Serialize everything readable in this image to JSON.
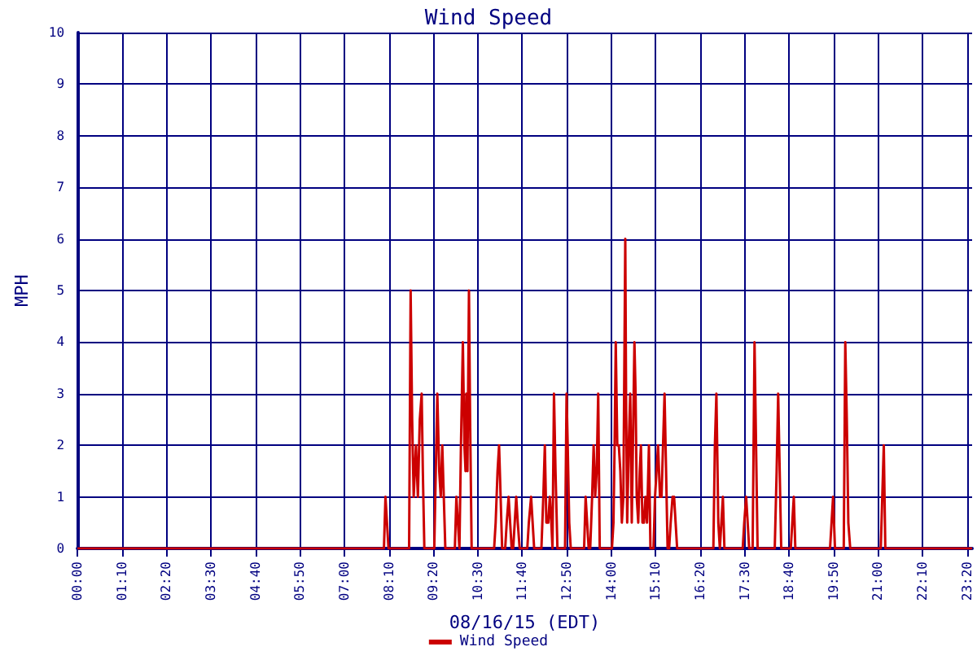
{
  "chart_data": {
    "type": "line",
    "title": "Wind Speed",
    "xlabel": "08/16/15 (EDT)",
    "ylabel": "MPH",
    "xlim": [
      0,
      23.4667
    ],
    "ylim": [
      0,
      10
    ],
    "xticks": [
      {
        "value": 0,
        "label": "00:00"
      },
      {
        "value": 1.1667,
        "label": "01:10"
      },
      {
        "value": 2.3333,
        "label": "02:20"
      },
      {
        "value": 3.5,
        "label": "03:30"
      },
      {
        "value": 4.6667,
        "label": "04:40"
      },
      {
        "value": 5.8333,
        "label": "05:50"
      },
      {
        "value": 7,
        "label": "07:00"
      },
      {
        "value": 8.1667,
        "label": "08:10"
      },
      {
        "value": 9.3333,
        "label": "09:20"
      },
      {
        "value": 10.5,
        "label": "10:30"
      },
      {
        "value": 11.6667,
        "label": "11:40"
      },
      {
        "value": 12.8333,
        "label": "12:50"
      },
      {
        "value": 14,
        "label": "14:00"
      },
      {
        "value": 15.1667,
        "label": "15:10"
      },
      {
        "value": 16.3333,
        "label": "16:20"
      },
      {
        "value": 17.5,
        "label": "17:30"
      },
      {
        "value": 18.6667,
        "label": "18:40"
      },
      {
        "value": 19.8333,
        "label": "19:50"
      },
      {
        "value": 21,
        "label": "21:00"
      },
      {
        "value": 22.1667,
        "label": "22:10"
      },
      {
        "value": 23.3333,
        "label": "23:20"
      }
    ],
    "yticks": [
      0,
      1,
      2,
      3,
      4,
      5,
      6,
      7,
      8,
      9,
      10
    ],
    "grid": true,
    "legend": "bottom",
    "marker": "none",
    "line_style": "solid",
    "x": [
      0,
      8.04,
      8.08,
      8.12,
      8.16,
      8.7,
      8.74,
      8.78,
      8.82,
      8.88,
      8.93,
      8.98,
      9.03,
      9.06,
      9.1,
      9.36,
      9.4,
      9.44,
      9.49,
      9.53,
      9.57,
      9.61,
      9.65,
      9.9,
      9.94,
      9.98,
      10.02,
      10.06,
      10.11,
      10.15,
      10.18,
      10.2,
      10.23,
      10.27,
      10.3,
      10.34,
      10.93,
      10.97,
      11.02,
      11.06,
      11.1,
      11.14,
      11.22,
      11.26,
      11.31,
      11.35,
      11.39,
      11.43,
      11.47,
      11.51,
      11.55,
      11.6,
      11.8,
      11.84,
      11.9,
      11.94,
      11.98,
      12.17,
      12.22,
      12.26,
      12.3,
      12.35,
      12.39,
      12.43,
      12.46,
      12.5,
      12.54,
      12.59,
      12.79,
      12.83,
      12.86,
      12.9,
      12.94,
      13.29,
      13.33,
      13.37,
      13.41,
      13.45,
      13.5,
      13.54,
      13.58,
      13.62,
      13.66,
      13.7,
      14.02,
      14.06,
      14.09,
      14.12,
      14.16,
      14.2,
      14.24,
      14.28,
      14.32,
      14.37,
      14.39,
      14.42,
      14.46,
      14.5,
      14.54,
      14.57,
      14.61,
      14.64,
      14.67,
      14.71,
      14.75,
      14.78,
      14.82,
      14.86,
      14.9,
      14.94,
      14.99,
      15.03,
      15.11,
      15.15,
      15.19,
      15.23,
      15.28,
      15.32,
      15.36,
      15.4,
      15.44,
      15.48,
      15.52,
      15.56,
      15.61,
      15.65,
      15.69,
      15.73,
      16.68,
      16.72,
      16.76,
      16.81,
      16.85,
      16.89,
      16.93,
      16.97,
      17.45,
      17.49,
      17.54,
      17.58,
      17.62,
      17.71,
      17.76,
      17.8,
      17.84,
      18.29,
      18.34,
      18.38,
      18.42,
      18.46,
      18.71,
      18.75,
      18.79,
      18.83,
      19.74,
      19.78,
      19.82,
      19.87,
      20.1,
      20.14,
      20.18,
      20.22,
      20.27,
      21.07,
      21.11,
      21.15,
      21.19,
      23.4667
    ],
    "series": [
      {
        "name": "Wind Speed",
        "color": "#cc0000",
        "values": [
          0,
          0,
          1,
          0.5,
          0,
          0,
          5,
          2.5,
          1,
          2,
          1,
          2.5,
          3,
          1.5,
          0,
          0,
          1.5,
          3,
          1.5,
          1,
          2,
          1,
          0,
          0,
          1,
          0.5,
          0,
          2,
          4,
          2,
          1.5,
          3,
          1.5,
          5,
          2.5,
          0,
          0,
          0.5,
          1.5,
          2,
          1,
          0,
          0,
          0.5,
          1,
          0.5,
          0,
          0,
          0.5,
          1,
          0.5,
          0,
          0,
          0.5,
          1,
          0.5,
          0,
          0,
          1,
          2,
          0.5,
          0.5,
          1,
          0.5,
          0,
          3,
          1.5,
          0,
          0,
          3,
          2,
          0.5,
          0,
          0,
          1,
          0.5,
          0,
          0,
          1,
          2,
          1,
          1.5,
          3,
          0,
          0,
          0.5,
          2,
          4,
          2,
          2,
          1.5,
          0.5,
          1,
          6,
          3,
          0.5,
          2,
          3,
          0.5,
          2,
          4,
          3,
          1,
          0.5,
          1.5,
          2,
          0.5,
          0.5,
          1,
          0.5,
          2,
          0,
          0,
          1,
          1.5,
          2,
          1,
          1,
          2,
          3,
          1.5,
          0,
          0,
          0.5,
          1,
          1,
          0.5,
          0,
          0,
          2,
          3,
          0.5,
          0,
          0.5,
          1,
          0,
          0,
          0.5,
          1,
          0.5,
          0,
          0,
          4,
          2,
          0,
          0,
          1.5,
          3,
          1.5,
          0,
          0,
          0.5,
          1,
          0,
          0,
          0.5,
          1,
          0,
          0,
          4,
          2.5,
          0.5,
          0,
          0,
          1,
          2,
          0,
          0
        ]
      }
    ]
  }
}
